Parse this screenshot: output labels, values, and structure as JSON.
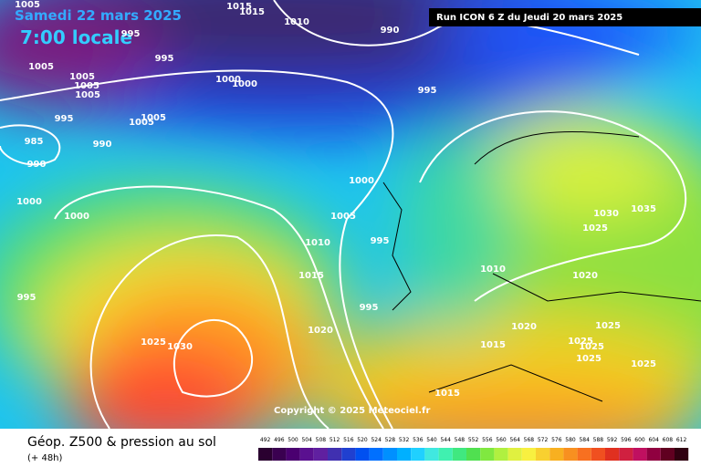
{
  "header": {
    "date": "Samedi 22 mars 2025",
    "time": "7:00 locale",
    "run": "Run ICON 6 Z du Jeudi 20 mars 2025"
  },
  "map": {
    "copyright": "Copyright © 2025 Meteociel.fr",
    "isobar_labels": [
      "1005",
      "1015",
      "1015",
      "1010",
      "995",
      "990",
      "995",
      "1005",
      "1005",
      "1005",
      "1005",
      "1000",
      "1000",
      "995",
      "995",
      "1005",
      "1005",
      "985",
      "990",
      "990",
      "1000",
      "1000",
      "1000",
      "1005",
      "995",
      "1010",
      "1030",
      "1035",
      "1025",
      "1015",
      "1010",
      "1020",
      "995",
      "995",
      "1020",
      "1020",
      "1025",
      "1025",
      "1030",
      "1015",
      "1025",
      "1025",
      "1025",
      "1025",
      "1015"
    ]
  },
  "footer": {
    "title": "Géop. Z500 & pression au sol",
    "lead": "(+ 48h)",
    "scale": [
      492,
      496,
      500,
      504,
      508,
      512,
      516,
      520,
      524,
      528,
      532,
      536,
      540,
      544,
      548,
      552,
      556,
      560,
      564,
      568,
      572,
      576,
      580,
      584,
      588,
      592,
      596,
      600,
      604,
      608,
      612
    ]
  }
}
